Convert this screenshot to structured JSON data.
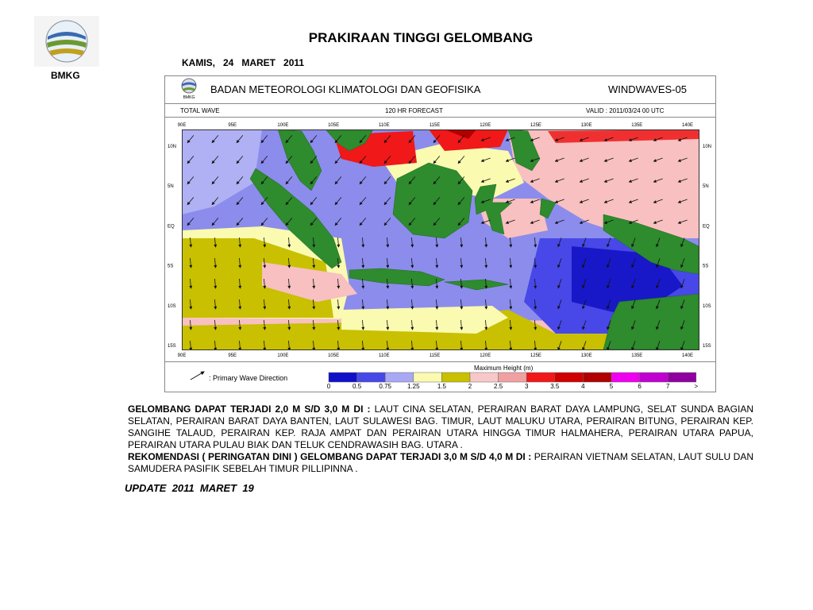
{
  "header": {
    "logo_label": "BMKG",
    "title": "PRAKIRAAN TINGGI GELOMBANG",
    "date": "KAMIS,   24   MARET   2011"
  },
  "map": {
    "logo_label": "BMKG",
    "agency": "BADAN METEOROLOGI KLIMATOLOGI DAN GEOFISIKA",
    "product": "WINDWAVES-05",
    "parameter": "TOTAL WAVE",
    "forecast": "120  HR FORECAST",
    "valid": "VALID :  2011/03/24 00  UTC",
    "longitudes": [
      "90E",
      "95E",
      "100E",
      "105E",
      "110E",
      "115E",
      "120E",
      "125E",
      "130E",
      "135E",
      "140E"
    ],
    "latitudes": [
      "10N",
      "5N",
      "EQ",
      "5S",
      "10S",
      "15S"
    ],
    "legend": {
      "arrow_label": ":  Primary Wave Direction",
      "scale_title": "Maximum Height (m)",
      "colors": [
        "#1010c8",
        "#4848e8",
        "#a8a8f4",
        "#fafab0",
        "#c8c000",
        "#f8c8c8",
        "#f0a0a0",
        "#f01818",
        "#d00000",
        "#b00000",
        "#f000f0",
        "#c000d0",
        "#9000a0",
        "#700080"
      ],
      "labels": [
        "0",
        "0.5",
        "0.75",
        "1.25",
        "1.5",
        "2",
        "2.5",
        "3",
        "3.5",
        "4",
        "5",
        "6",
        "7",
        ">"
      ]
    }
  },
  "text": {
    "p1_bold": "GELOMBANG DAPAT TERJADI 2,0 M S/D 3,0 M DI :",
    "p1": "LAUT CINA SELATAN, PERAIRAN BARAT DAYA LAMPUNG, SELAT SUNDA BAGIAN SELATAN, PERAIRAN BARAT DAYA BANTEN, LAUT SULAWESI BAG. TIMUR, LAUT MALUKU UTARA, PERAIRAN BITUNG, PERAIRAN KEP. SANGIHE TALAUD, PERAIRAN KEP. RAJA AMPAT DAN PERAIRAN UTARA HINGGA TIMUR HALMAHERA, PERAIRAN UTARA PAPUA, PERAIRAN UTARA PULAU BIAK DAN TELUK CENDRAWASIH BAG. UTARA .",
    "p2_bold": "REKOMENDASI ( PERINGATAN DINI ) GELOMBANG DAPAT TERJADI 3,0 M S/D 4,0 M DI :",
    "p2": "PERAIRAN VIETNAM SELATAN, LAUT SULU DAN SAMUDERA PASIFIK SEBELAH TIMUR PILLIPINNA .",
    "update": "UPDATE  2011  MARET  19"
  }
}
